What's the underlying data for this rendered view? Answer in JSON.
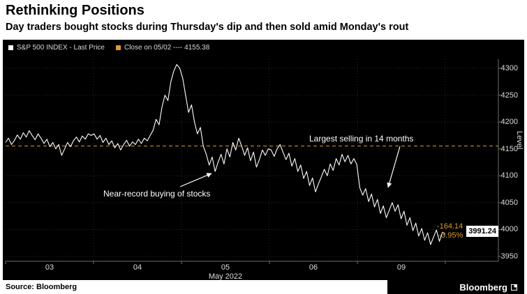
{
  "header": {
    "title": "Rethinking Positions",
    "subtitle": "Day traders bought stocks during Thursday's dip and then sold amid Monday's rout"
  },
  "footer": {
    "source": "Source: Bloomberg",
    "brand": "Bloomberg"
  },
  "colors": {
    "accent": "#DE9B35",
    "chart_bg": "#000000",
    "grid": "#2E2E2E",
    "axis": "#6E6E6E",
    "text_light": "#DDDDDD"
  },
  "chart_data": {
    "type": "line",
    "title": "Rethinking Positions",
    "ylabel": "Level",
    "ylim": [
      3950,
      4300
    ],
    "y_ticks": [
      4300,
      4250,
      4200,
      4150,
      4100,
      4050,
      4000,
      3950
    ],
    "days": [
      "03",
      "04",
      "05",
      "06",
      "09"
    ],
    "x_title": "May 2022",
    "grid": true,
    "legend_position": "top-left",
    "reference_line": {
      "label": "Close on 05/02",
      "value": 4155.38,
      "legend": "Close on 05/02 ---- 4155.38"
    },
    "annotations": [
      "Largest selling in 14 months",
      "Near-record buying of stocks"
    ],
    "last_price_label": {
      "change": "-164.14",
      "price": "3991.24",
      "pct": "-3.95%"
    },
    "series": [
      {
        "name": "S&P 500 INDEX - Last Price",
        "values_by_day": [
          [
            4162,
            4170,
            4158,
            4166,
            4176,
            4168,
            4180,
            4172,
            4184,
            4175,
            4167,
            4178,
            4170,
            4160,
            4168,
            4154,
            4162,
            4150,
            4158,
            4138,
            4150,
            4162,
            4154,
            4165,
            4172,
            4163,
            4174,
            4168,
            4178,
            4175
          ],
          [
            4178,
            4168,
            4175,
            4162,
            4170,
            4158,
            4165,
            4152,
            4160,
            4148,
            4158,
            4166,
            4155,
            4163,
            4158,
            4168,
            4160,
            4170,
            4165,
            4175,
            4185,
            4205,
            4195,
            4228,
            4250,
            4240,
            4275,
            4295,
            4307,
            4300
          ],
          [
            4282,
            4250,
            4218,
            4232,
            4200,
            4178,
            4190,
            4155,
            4140,
            4120,
            4135,
            4108,
            4125,
            4140,
            4122,
            4150,
            4135,
            4162,
            4148,
            4170,
            4155,
            4138,
            4152,
            4128,
            4144,
            4116,
            4130,
            4148,
            4138,
            4150
          ],
          [
            4148,
            4136,
            4150,
            4158,
            4144,
            4130,
            4142,
            4118,
            4132,
            4108,
            4120,
            4095,
            4108,
            4082,
            4096,
            4070,
            4085,
            4098,
            4112,
            4100,
            4122,
            4110,
            4132,
            4120,
            4140,
            4126,
            4138,
            4122,
            4132,
            4121
          ],
          [
            4078,
            4064,
            4076,
            4052,
            4066,
            4042,
            4056,
            4030,
            4044,
            4022,
            4036,
            4050,
            4034,
            4046,
            4020,
            4034,
            4008,
            4022,
            3998,
            4012,
            3988,
            4002,
            3980,
            3994,
            3972,
            3986,
            3999,
            3978,
            3995,
            3991.24
          ]
        ]
      }
    ]
  }
}
